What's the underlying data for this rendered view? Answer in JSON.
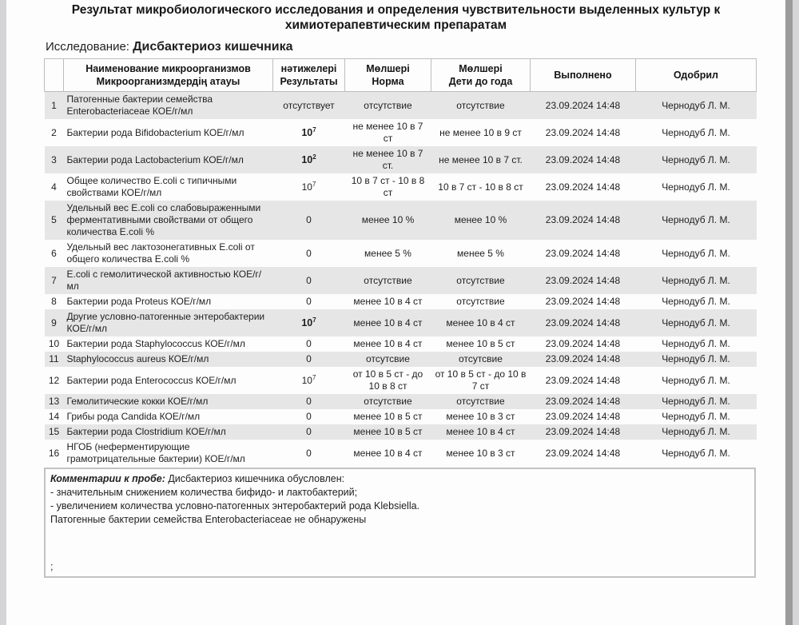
{
  "page": {
    "title": "Результат микробиологического исследования и определения чувствительности  выделенных культур к химиотерапевтическим препаратам",
    "study_label": "Исследование:",
    "study_value": "Дисбактериоз кишечника"
  },
  "table": {
    "headers": {
      "name_ru": "Наименование микроорганизмов",
      "name_kz": "Микроорганизмдердің атауы",
      "result_kz": "нәтижелері",
      "result_ru": "Результаты",
      "norm_kz": "Мөлшері",
      "norm_ru": "Норма",
      "children_kz": "Мөлшері",
      "children_ru": "Дети до года",
      "performed": "Выполнено",
      "approved": "Одобрил"
    },
    "rows": [
      {
        "num": "1",
        "name": "Патогенные бактерии семейства Enterobacteriaceae КОЕ/г/мл",
        "result": {
          "text": "отсутствует"
        },
        "norm": "отсутствие",
        "children": "отсутствие",
        "performed": "23.09.2024 14:48",
        "approved": "Чернодуб Л. М."
      },
      {
        "num": "2",
        "name": "Бактерии рода Bifidobacterium КОЕ/г/мл",
        "result": {
          "base": "10",
          "exp": "7",
          "bold": true
        },
        "norm": "не менее 10 в 7 ст",
        "children": "не менее 10 в 9 ст",
        "performed": "23.09.2024 14:48",
        "approved": "Чернодуб Л. М."
      },
      {
        "num": "3",
        "name": "Бактерии рода Lactobacterium КОЕ/г/мл",
        "result": {
          "base": "10",
          "exp": "2",
          "bold": true
        },
        "norm": "не менее 10 в 7 ст.",
        "children": "не менее 10 в 7 ст.",
        "performed": "23.09.2024 14:48",
        "approved": "Чернодуб Л. М."
      },
      {
        "num": "4",
        "name": "Общее количество E.coli с типичными свойствами КОЕ/г/мл",
        "result": {
          "base": "10",
          "exp": "7",
          "bold": false
        },
        "norm": "10 в 7 ст - 10 в 8 ст",
        "children": "10 в 7 ст - 10 в 8 ст",
        "performed": "23.09.2024 14:48",
        "approved": "Чернодуб Л. М."
      },
      {
        "num": "5",
        "name": "Удельный вес E.coli со слабовыраженными ферментативными свойствами от общего количества E.coli %",
        "result": {
          "text": "0"
        },
        "norm": "менее 10 %",
        "children": "менее 10 %",
        "performed": "23.09.2024 14:48",
        "approved": "Чернодуб Л. М."
      },
      {
        "num": "6",
        "name": "Удельный вес лактозонегативных E.coli от общего количества E.coli %",
        "result": {
          "text": "0"
        },
        "norm": "менее 5 %",
        "children": "менее 5 %",
        "performed": "23.09.2024 14:48",
        "approved": "Чернодуб Л. М."
      },
      {
        "num": "7",
        "name": "E.coli с гемолитической активностью КОЕ/г/мл",
        "result": {
          "text": "0"
        },
        "norm": "отсутствие",
        "children": "отсутствие",
        "performed": "23.09.2024 14:48",
        "approved": "Чернодуб Л. М."
      },
      {
        "num": "8",
        "name": "Бактерии рода Proteus КОЕ/г/мл",
        "result": {
          "text": "0"
        },
        "norm": "менее 10 в 4 ст",
        "children": "отсутствие",
        "performed": "23.09.2024 14:48",
        "approved": "Чернодуб Л. М."
      },
      {
        "num": "9",
        "name": "Другие условно-патогенные энтеробактерии КОЕ/г/мл",
        "result": {
          "base": "10",
          "exp": "7",
          "bold": true
        },
        "norm": "менее 10 в 4 ст",
        "children": "менее 10 в 4 ст",
        "performed": "23.09.2024 14:48",
        "approved": "Чернодуб Л. М."
      },
      {
        "num": "10",
        "name": "Бактерии рода Staphylococcus КОЕ/г/мл",
        "result": {
          "text": "0"
        },
        "norm": "менее 10 в 4 ст",
        "children": "менее 10 в 5 ст",
        "performed": "23.09.2024 14:48",
        "approved": "Чернодуб Л. М."
      },
      {
        "num": "11",
        "name": "Staphylococcus aureus КОЕ/г/мл",
        "result": {
          "text": "0"
        },
        "norm": "отсутсвие",
        "children": "отсутсвие",
        "performed": "23.09.2024 14:48",
        "approved": "Чернодуб Л. М."
      },
      {
        "num": "12",
        "name": "Бактерии рода Enterococcus КОЕ/г/мл",
        "result": {
          "base": "10",
          "exp": "7",
          "bold": false
        },
        "norm": "от 10 в 5 ст - до 10 в 8 ст",
        "children": "от 10 в 5 ст - до 10 в 7 ст",
        "performed": "23.09.2024 14:48",
        "approved": "Чернодуб Л. М."
      },
      {
        "num": "13",
        "name": "Гемолитические кокки КОЕ/г/мл",
        "result": {
          "text": "0"
        },
        "norm": "отсутствие",
        "children": "отсутствие",
        "performed": "23.09.2024 14:48",
        "approved": "Чернодуб Л. М."
      },
      {
        "num": "14",
        "name": "Грибы рода Candida КОЕ/г/мл",
        "result": {
          "text": "0"
        },
        "norm": "менее 10 в 5 ст",
        "children": "менее 10 в 3 ст",
        "performed": "23.09.2024 14:48",
        "approved": "Чернодуб Л. М."
      },
      {
        "num": "15",
        "name": "Бактерии рода Clostridium КОЕ/г/мл",
        "result": {
          "text": "0"
        },
        "norm": "менее 10 в 5 ст",
        "children": "менее 10 в 4 ст",
        "performed": "23.09.2024 14:48",
        "approved": "Чернодуб Л. М."
      },
      {
        "num": "16",
        "name": "НГОБ (неферментирующие грамотрицательные бактерии) КОЕ/г/мл",
        "result": {
          "text": "0"
        },
        "norm": "менее 10 в 4 ст",
        "children": "менее 10 в 3 ст",
        "performed": "23.09.2024 14:48",
        "approved": "Чернодуб Л. М."
      }
    ]
  },
  "comments": {
    "label": "Комментарии к пробе:",
    "intro": " Дисбактериоз кишечника обусловлен:",
    "lines": [
      "- значительным снижением количества бифидо- и лактобактерий;",
      "- увеличением количества условно-патогенных энтеробактерий рода Klebsiella.",
      "Патогенные бактерии семейства Enterobacteriaceae  не обнаружены"
    ],
    "trailing": ";"
  },
  "colors": {
    "zebra_row": "#e6e6e6",
    "border": "#bdbdbd",
    "scrollbar_thumb": "#9b9b9b",
    "edge_strip": "#d5d5d7",
    "text": "#1f1f1f"
  }
}
